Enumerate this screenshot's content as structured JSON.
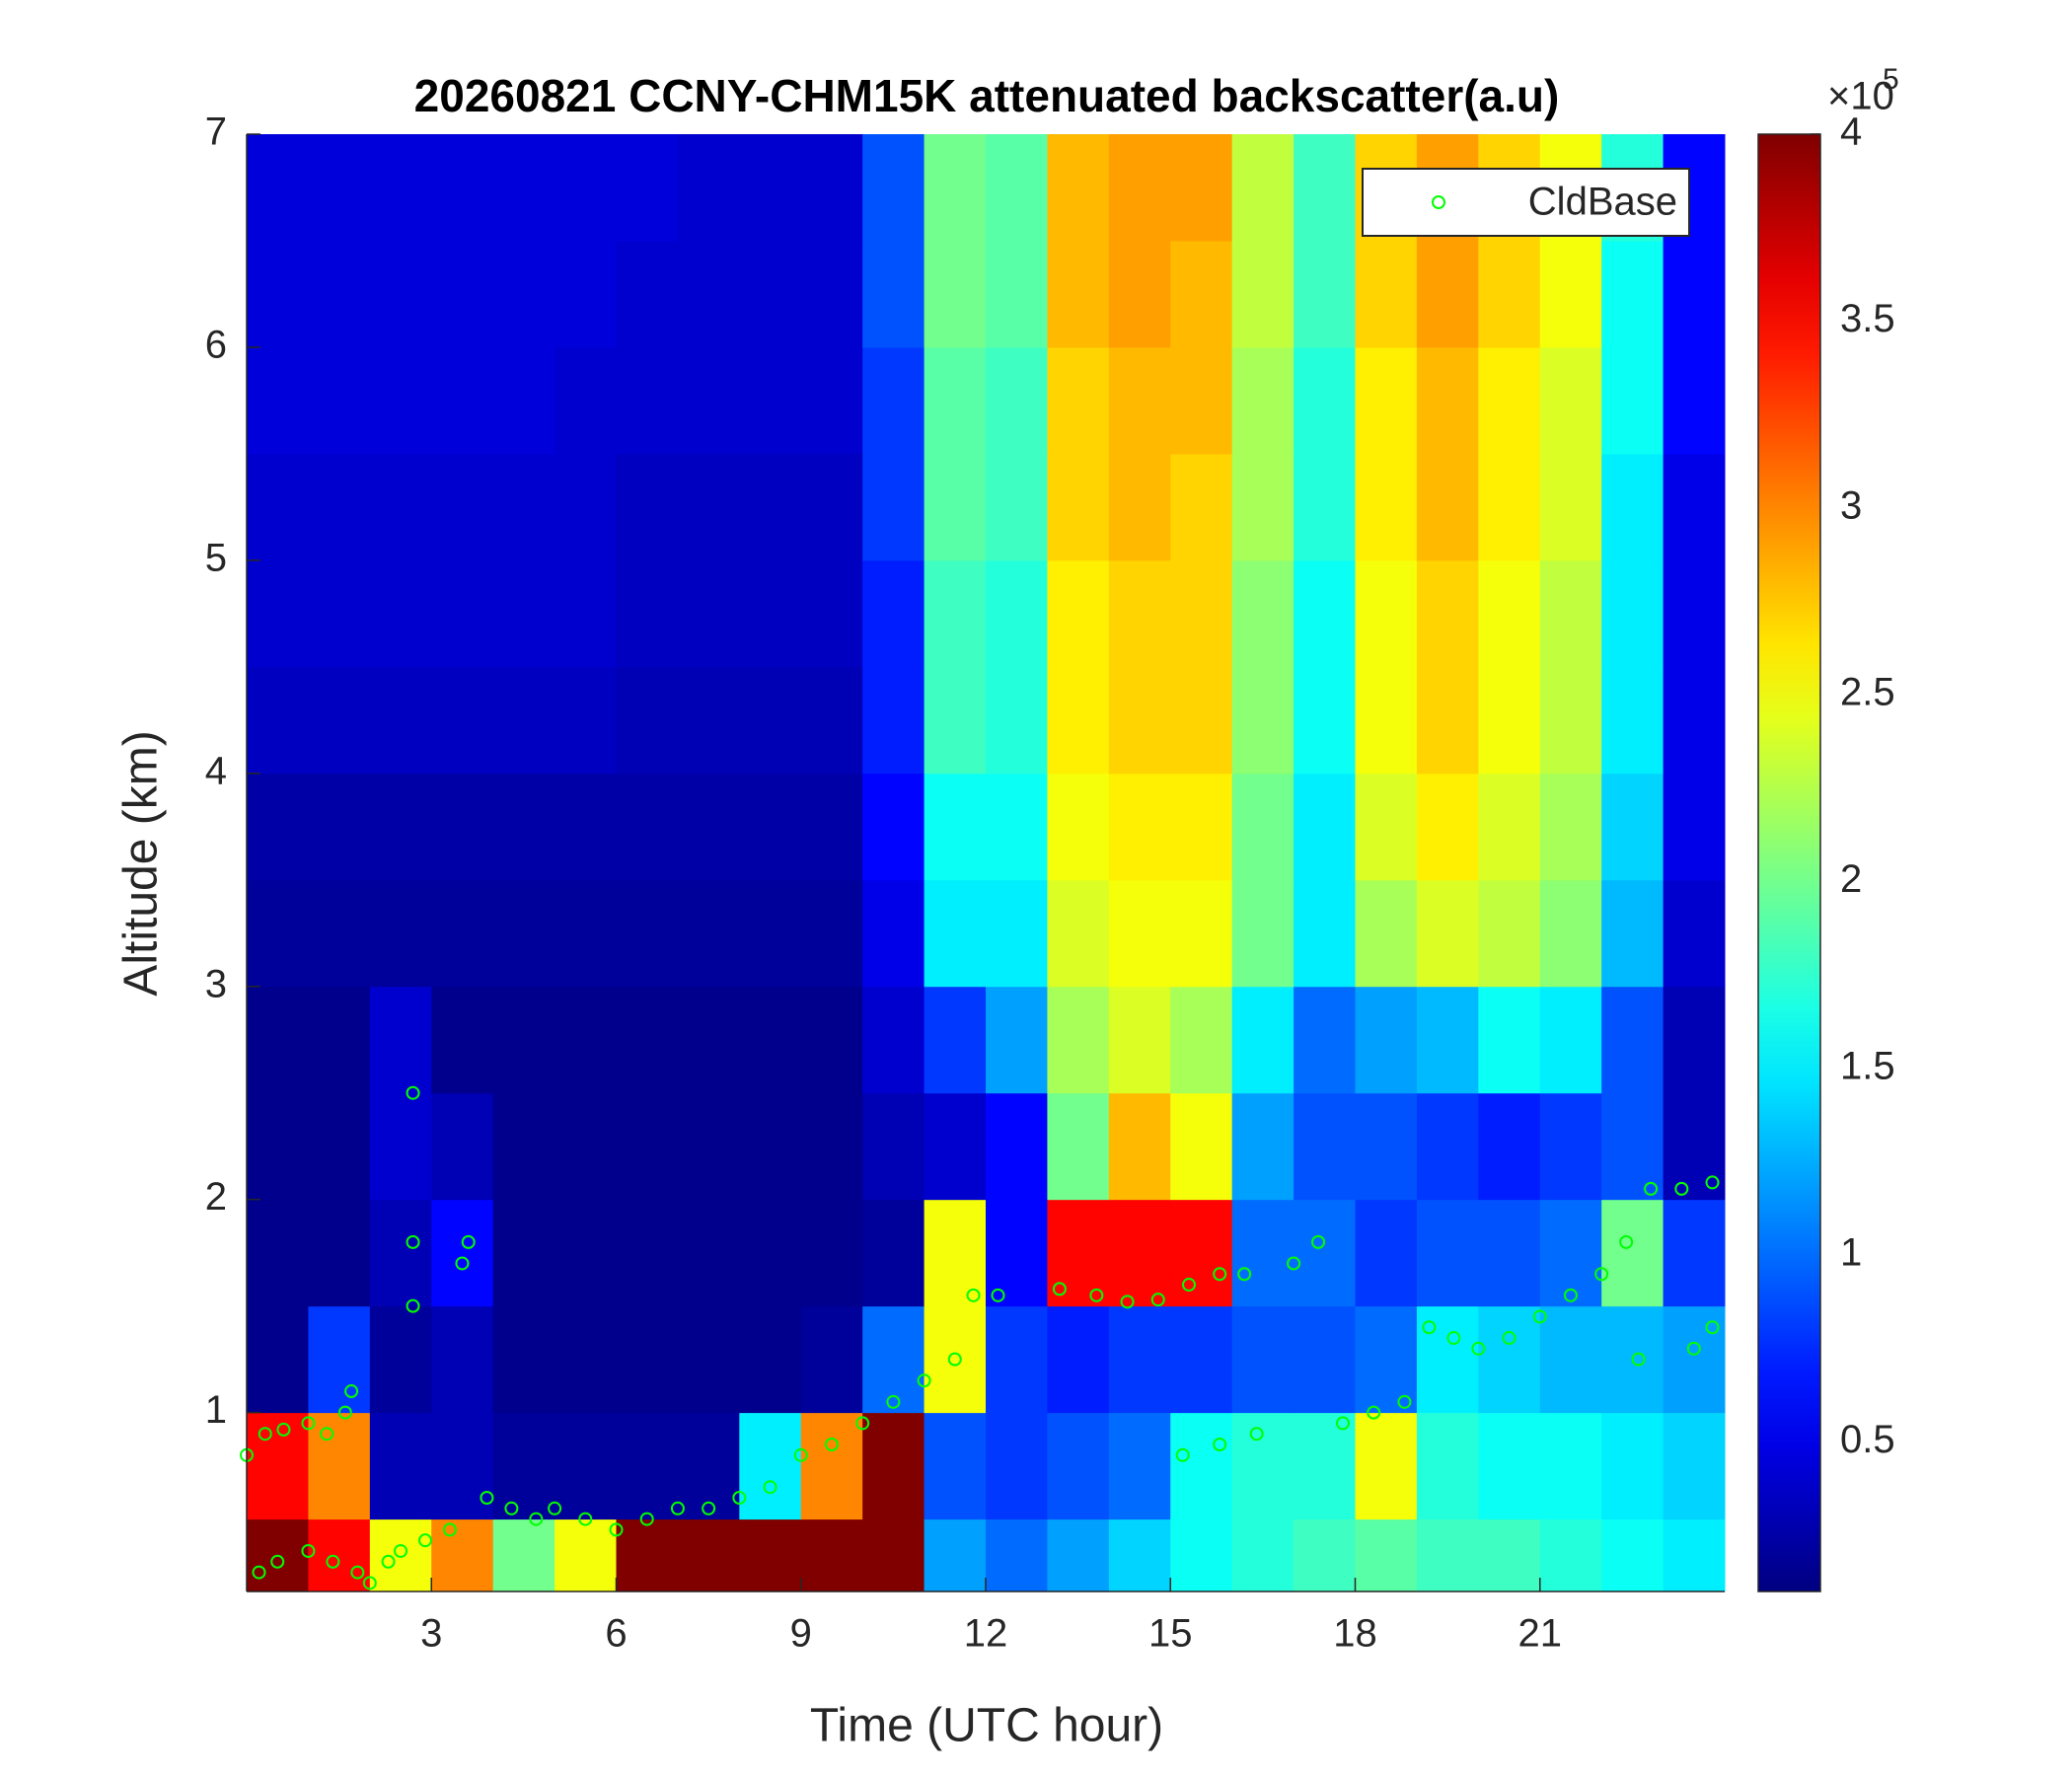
{
  "chart_data": {
    "type": "heatmap",
    "title": "20260821 CCNY-CHM15K attenuated backscatter(a.u)",
    "xlabel": "Time (UTC hour)",
    "ylabel": "Altitude (km)",
    "xlim": [
      0,
      24
    ],
    "ylim": [
      0.16,
      7
    ],
    "xticks": [
      3,
      6,
      9,
      12,
      15,
      18,
      21
    ],
    "yticks": [
      1,
      2,
      3,
      4,
      5,
      6,
      7
    ],
    "colormap": "jet",
    "clim": [
      0.1,
      4
    ],
    "cticks": [
      0.5,
      1,
      1.5,
      2,
      2.5,
      3,
      3.5,
      4
    ],
    "colorbar_multiplier": "×10",
    "colorbar_exponent": "5",
    "x_edges": [
      0,
      1,
      2,
      3,
      4,
      5,
      6,
      7,
      8,
      9,
      10,
      11,
      12,
      13,
      14,
      15,
      16,
      17,
      18,
      19,
      20,
      21,
      22,
      23,
      24
    ],
    "y_edges": [
      0.16,
      0.5,
      1,
      1.5,
      2,
      2.5,
      3,
      3.5,
      4,
      4.5,
      5,
      5.5,
      6,
      6.5,
      7
    ],
    "z": [
      [
        4,
        3.5,
        2.5,
        3,
        2,
        2.5,
        4,
        4,
        4,
        4,
        4,
        1.2,
        1.0,
        1.2,
        1.4,
        1.6,
        1.7,
        1.8,
        1.9,
        1.8,
        1.8,
        1.7,
        1.6,
        1.5
      ],
      [
        3.5,
        3,
        0.3,
        0.3,
        0.2,
        0.2,
        0.2,
        0.2,
        1.5,
        3,
        4,
        0.9,
        0.8,
        0.9,
        1.0,
        1.6,
        1.7,
        1.7,
        2.5,
        1.7,
        1.6,
        1.6,
        1.5,
        1.4
      ],
      [
        0.15,
        0.8,
        0.2,
        0.3,
        0.15,
        0.15,
        0.15,
        0.15,
        0.15,
        0.2,
        1.0,
        2.5,
        0.8,
        0.7,
        0.8,
        0.8,
        0.9,
        0.9,
        1.0,
        1.5,
        1.4,
        1.3,
        1.3,
        1.2
      ],
      [
        0.15,
        0.15,
        0.3,
        0.6,
        0.15,
        0.15,
        0.15,
        0.15,
        0.15,
        0.15,
        0.2,
        2.5,
        0.6,
        3.5,
        3.5,
        3.5,
        1.0,
        1.0,
        0.8,
        0.9,
        0.9,
        1.0,
        2.0,
        0.8
      ],
      [
        0.15,
        0.15,
        0.4,
        0.3,
        0.15,
        0.15,
        0.15,
        0.15,
        0.15,
        0.15,
        0.3,
        0.4,
        0.6,
        2.0,
        2.8,
        2.5,
        1.2,
        0.9,
        0.9,
        0.8,
        0.7,
        0.8,
        0.9,
        0.3
      ],
      [
        0.15,
        0.15,
        0.4,
        0.15,
        0.15,
        0.15,
        0.15,
        0.15,
        0.15,
        0.15,
        0.4,
        0.8,
        1.2,
        2.2,
        2.4,
        2.2,
        1.5,
        1.0,
        1.2,
        1.3,
        1.6,
        1.5,
        0.9,
        0.3
      ],
      [
        0.2,
        0.2,
        0.2,
        0.2,
        0.2,
        0.2,
        0.2,
        0.2,
        0.2,
        0.2,
        0.5,
        1.5,
        1.5,
        2.4,
        2.5,
        2.5,
        2.0,
        1.5,
        2.2,
        2.4,
        2.3,
        2.1,
        1.3,
        0.4
      ],
      [
        0.25,
        0.25,
        0.25,
        0.25,
        0.25,
        0.25,
        0.25,
        0.25,
        0.25,
        0.25,
        0.6,
        1.6,
        1.6,
        2.5,
        2.6,
        2.6,
        2.0,
        1.5,
        2.4,
        2.6,
        2.4,
        2.2,
        1.4,
        0.5
      ],
      [
        0.35,
        0.35,
        0.35,
        0.35,
        0.35,
        0.35,
        0.3,
        0.3,
        0.3,
        0.3,
        0.7,
        1.8,
        1.7,
        2.6,
        2.7,
        2.7,
        2.1,
        1.6,
        2.5,
        2.7,
        2.5,
        2.3,
        1.5,
        0.5
      ],
      [
        0.4,
        0.4,
        0.4,
        0.4,
        0.4,
        0.4,
        0.35,
        0.35,
        0.35,
        0.35,
        0.7,
        1.8,
        1.7,
        2.6,
        2.7,
        2.7,
        2.1,
        1.6,
        2.5,
        2.7,
        2.5,
        2.3,
        1.5,
        0.5
      ],
      [
        0.4,
        0.4,
        0.4,
        0.4,
        0.4,
        0.4,
        0.35,
        0.35,
        0.35,
        0.35,
        0.8,
        1.9,
        1.8,
        2.7,
        2.8,
        2.7,
        2.2,
        1.7,
        2.6,
        2.8,
        2.6,
        2.4,
        1.5,
        0.5
      ],
      [
        0.45,
        0.45,
        0.45,
        0.45,
        0.45,
        0.4,
        0.4,
        0.4,
        0.4,
        0.4,
        0.8,
        1.9,
        1.8,
        2.7,
        2.8,
        2.8,
        2.2,
        1.7,
        2.6,
        2.8,
        2.6,
        2.4,
        1.6,
        0.6
      ],
      [
        0.45,
        0.45,
        0.45,
        0.45,
        0.45,
        0.45,
        0.4,
        0.4,
        0.4,
        0.4,
        0.9,
        2.0,
        1.9,
        2.8,
        2.9,
        2.8,
        2.3,
        1.8,
        2.7,
        2.9,
        2.7,
        2.5,
        1.6,
        0.6
      ],
      [
        0.45,
        0.45,
        0.45,
        0.45,
        0.45,
        0.45,
        0.45,
        0.4,
        0.4,
        0.4,
        0.9,
        2.0,
        1.9,
        2.8,
        2.9,
        2.9,
        2.3,
        1.8,
        2.7,
        2.9,
        2.7,
        2.5,
        1.7,
        0.6
      ]
    ],
    "legend": "upper right",
    "series": [
      {
        "name": "CldBase",
        "type": "scatter",
        "color": "#00ff00",
        "x": [
          0.0,
          0.3,
          0.6,
          1.0,
          1.3,
          1.6,
          1.7,
          0.2,
          0.5,
          1.0,
          1.4,
          1.8,
          2.0,
          2.3,
          2.5,
          2.7,
          2.7,
          2.7,
          2.9,
          3.3,
          3.5,
          3.6,
          3.9,
          4.3,
          4.7,
          5.0,
          5.5,
          6.0,
          6.5,
          7.0,
          7.5,
          8.0,
          8.5,
          9.0,
          9.5,
          10.0,
          10.5,
          11.0,
          11.5,
          11.8,
          12.2,
          13.2,
          13.8,
          14.3,
          14.8,
          15.3,
          15.8,
          16.2,
          15.2,
          15.8,
          16.4,
          17.0,
          17.4,
          17.8,
          18.3,
          18.8,
          19.2,
          19.6,
          20.0,
          20.5,
          21.0,
          21.5,
          22.0,
          22.4,
          22.8,
          23.3,
          23.8,
          23.8,
          23.5,
          22.6
        ],
        "y": [
          0.8,
          0.9,
          0.92,
          0.95,
          0.9,
          1.0,
          1.1,
          0.25,
          0.3,
          0.35,
          0.3,
          0.25,
          0.2,
          0.3,
          0.35,
          2.5,
          1.8,
          1.5,
          0.4,
          0.45,
          1.7,
          1.8,
          0.6,
          0.55,
          0.5,
          0.55,
          0.5,
          0.45,
          0.5,
          0.55,
          0.55,
          0.6,
          0.65,
          0.8,
          0.85,
          0.95,
          1.05,
          1.15,
          1.25,
          1.55,
          1.55,
          1.58,
          1.55,
          1.52,
          1.53,
          1.6,
          1.65,
          1.65,
          0.8,
          0.85,
          0.9,
          1.7,
          1.8,
          0.95,
          1.0,
          1.05,
          1.4,
          1.35,
          1.3,
          1.35,
          1.45,
          1.55,
          1.65,
          1.8,
          2.05,
          2.05,
          2.08,
          1.4,
          1.3,
          1.25
        ]
      }
    ]
  }
}
